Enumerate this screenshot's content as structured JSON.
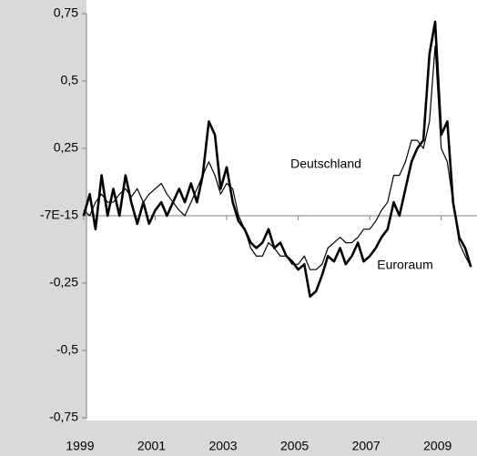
{
  "chart_data": {
    "type": "line",
    "x": [
      1999,
      1999.17,
      1999.33,
      1999.5,
      1999.67,
      1999.83,
      2000,
      2000.17,
      2000.33,
      2000.5,
      2000.67,
      2000.83,
      2001,
      2001.17,
      2001.33,
      2001.5,
      2001.67,
      2001.83,
      2002,
      2002.17,
      2002.33,
      2002.5,
      2002.67,
      2002.83,
      2003,
      2003.17,
      2003.33,
      2003.5,
      2003.67,
      2003.83,
      2004,
      2004.17,
      2004.33,
      2004.5,
      2004.67,
      2004.83,
      2005,
      2005.17,
      2005.33,
      2005.5,
      2005.67,
      2005.83,
      2006,
      2006.17,
      2006.33,
      2006.5,
      2006.67,
      2006.83,
      2007,
      2007.17,
      2007.33,
      2007.5,
      2007.67,
      2007.83,
      2008,
      2008.17,
      2008.33,
      2008.5,
      2008.67,
      2008.83,
      2009,
      2009.17,
      2009.33,
      2009.5,
      2009.67,
      2009.83
    ],
    "series": [
      {
        "name": "Deutschland",
        "color": "#000000",
        "values": [
          0.02,
          0.0,
          0.05,
          0.08,
          0.05,
          0.05,
          0.08,
          0.1,
          0.07,
          0.1,
          0.05,
          0.08,
          0.1,
          0.12,
          0.08,
          0.05,
          0.02,
          0.0,
          0.05,
          0.1,
          0.15,
          0.2,
          0.15,
          0.08,
          0.12,
          0.1,
          0.0,
          -0.05,
          -0.12,
          -0.15,
          -0.15,
          -0.1,
          -0.12,
          -0.15,
          -0.15,
          -0.18,
          -0.18,
          -0.15,
          -0.2,
          -0.2,
          -0.18,
          -0.12,
          -0.1,
          -0.08,
          -0.1,
          -0.1,
          -0.08,
          -0.05,
          -0.05,
          -0.02,
          0.02,
          0.05,
          0.15,
          0.15,
          0.2,
          0.28,
          0.28,
          0.25,
          0.35,
          0.63,
          0.25,
          0.2,
          0.05,
          -0.1,
          -0.15,
          -0.19
        ]
      },
      {
        "name": "Euroraum",
        "color": "#000000",
        "values": [
          0.0,
          0.08,
          -0.05,
          0.15,
          0.0,
          0.1,
          0.0,
          0.15,
          0.05,
          -0.03,
          0.05,
          -0.03,
          0.02,
          0.05,
          0.0,
          0.05,
          0.1,
          0.05,
          0.12,
          0.05,
          0.15,
          0.35,
          0.3,
          0.1,
          0.18,
          0.05,
          -0.02,
          -0.05,
          -0.1,
          -0.12,
          -0.1,
          -0.05,
          -0.12,
          -0.1,
          -0.15,
          -0.17,
          -0.2,
          -0.18,
          -0.3,
          -0.28,
          -0.22,
          -0.15,
          -0.17,
          -0.12,
          -0.18,
          -0.15,
          -0.1,
          -0.17,
          -0.15,
          -0.12,
          -0.08,
          -0.05,
          0.05,
          0.0,
          0.1,
          0.2,
          0.25,
          0.28,
          0.6,
          0.72,
          0.3,
          0.35,
          0.05,
          -0.08,
          -0.12,
          -0.19
        ]
      }
    ],
    "xlim": [
      1998.9,
      2010.0
    ],
    "xticks": [
      1999,
      2001,
      2003,
      2005,
      2007,
      2009
    ],
    "ylim": [
      -0.75,
      0.75
    ],
    "yticks": [
      {
        "value": -0.75,
        "label": "-0,75"
      },
      {
        "value": -0.5,
        "label": "-0,5"
      },
      {
        "value": -0.25,
        "label": "-0,25"
      },
      {
        "value": -7e-15,
        "label": "-7E-15"
      },
      {
        "value": 0.25,
        "label": "0,25"
      },
      {
        "value": 0.5,
        "label": "0,5"
      },
      {
        "value": 0.75,
        "label": "0,75"
      }
    ]
  }
}
